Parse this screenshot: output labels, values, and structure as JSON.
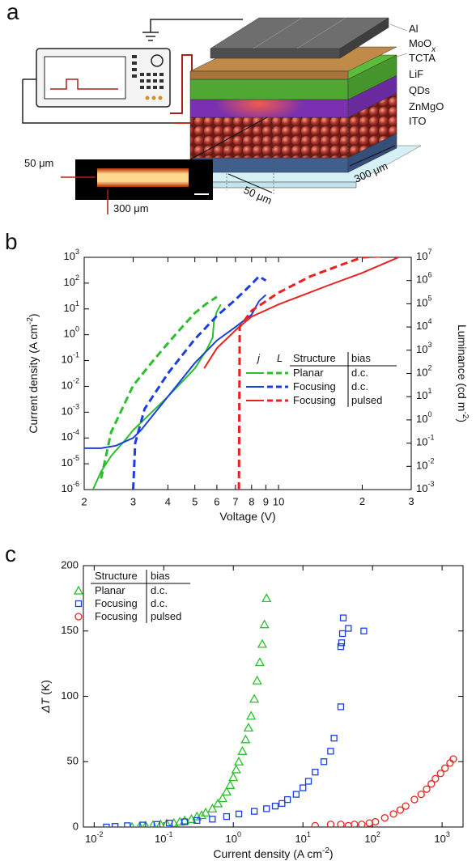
{
  "panel_labels": [
    "a",
    "b",
    "c"
  ],
  "schematic": {
    "layers": [
      {
        "text": "Al"
      },
      {
        "text": "MoO",
        "sub": "x"
      },
      {
        "text": "TCTA"
      },
      {
        "text": "LiF"
      },
      {
        "text": "QDs"
      },
      {
        "text": "ZnMgO"
      },
      {
        "text": "ITO"
      }
    ],
    "inset_labels": [
      "50 μm",
      "300 μm"
    ],
    "dimension_labels": [
      "50 μm",
      "300 μm"
    ]
  },
  "chart_data": [
    {
      "type": "line",
      "xlog": true,
      "ylog": true,
      "y2log": true,
      "xlabel": {
        "parts": [
          {
            "text": "Voltage (V)"
          }
        ]
      },
      "ylabel": {
        "parts": [
          {
            "text": "Current density (A cm"
          },
          {
            "text": "-2",
            "style": "sup"
          },
          {
            "text": ")"
          }
        ]
      },
      "y2label": {
        "parts": [
          {
            "text": "Luminance (cd m"
          },
          {
            "text": "-2",
            "style": "sup"
          },
          {
            "text": ")"
          }
        ]
      },
      "xlim": [
        2,
        30
      ],
      "xticks": [
        2,
        3,
        4,
        5,
        6,
        7,
        8,
        9,
        10,
        {
          "value": 20,
          "label": "2"
        },
        {
          "value": 30,
          "label": "3"
        }
      ],
      "ylim": [
        1e-06,
        1000
      ],
      "yticks": [
        {
          "value": 1e-06,
          "label": "10",
          "exponent": "-6"
        },
        {
          "value": 1e-05,
          "label": "10",
          "exponent": "-5"
        },
        {
          "value": 0.0001,
          "label": "10",
          "exponent": "-4"
        },
        {
          "value": 0.001,
          "label": "10",
          "exponent": "-3"
        },
        {
          "value": 0.01,
          "label": "10",
          "exponent": "-2"
        },
        {
          "value": 0.1,
          "label": "10",
          "exponent": "-1"
        },
        {
          "value": 1,
          "label": "10",
          "exponent": "0"
        },
        {
          "value": 10,
          "label": "10",
          "exponent": "1"
        },
        {
          "value": 100,
          "label": "10",
          "exponent": "2"
        },
        {
          "value": 1000,
          "label": "10",
          "exponent": "3"
        }
      ],
      "y2lim": [
        0.001,
        10000000
      ],
      "y2ticks": [
        {
          "value": 0.001,
          "label": "10",
          "exponent": "-3"
        },
        {
          "value": 0.01,
          "label": "10",
          "exponent": "-2"
        },
        {
          "value": 0.1,
          "label": "10",
          "exponent": "-1"
        },
        {
          "value": 1,
          "label": "10",
          "exponent": "0"
        },
        {
          "value": 10,
          "label": "10",
          "exponent": "1"
        },
        {
          "value": 100,
          "label": "10",
          "exponent": "2"
        },
        {
          "value": 1000,
          "label": "10",
          "exponent": "3"
        },
        {
          "value": 10000,
          "label": "10",
          "exponent": "4"
        },
        {
          "value": 100000,
          "label": "10",
          "exponent": "5"
        },
        {
          "value": 1000000,
          "label": "10",
          "exponent": "6"
        },
        {
          "value": 10000000,
          "label": "10",
          "exponent": "7"
        }
      ],
      "legend": {
        "headers": [
          "j",
          "L",
          "Structure",
          "bias"
        ]
      },
      "series": [
        {
          "name": "Planar",
          "bias": "d.c.",
          "color": "#2cbf2c",
          "style": "solid",
          "axis": "y",
          "x": [
            2.15,
            2.3,
            2.5,
            2.8,
            3,
            3.5,
            4,
            4.5,
            5,
            5.5,
            5.8,
            5.85,
            6,
            6.2
          ],
          "values": [
            1e-06,
            5e-06,
            2e-05,
            8e-05,
            0.0002,
            0.001,
            0.004,
            0.015,
            0.05,
            0.25,
            0.8,
            3,
            8,
            15
          ]
        },
        {
          "name": "Planar",
          "bias": "d.c.",
          "color": "#2cbf2c",
          "style": "dashed",
          "axis": "y2",
          "x": [
            2.3,
            2.5,
            3,
            3.5,
            4,
            4.5,
            5,
            5.5,
            6
          ],
          "values": [
            0.003,
            0.3,
            30,
            300,
            2000,
            10000,
            40000,
            100000,
            200000
          ]
        },
        {
          "name": "Focusing",
          "bias": "d.c.",
          "color": "#1a3fe0",
          "style": "solid",
          "axis": "y",
          "x": [
            2,
            2.3,
            2.6,
            3,
            3.2,
            4,
            5,
            6,
            7,
            8,
            8.5,
            9
          ],
          "values": [
            4e-05,
            4e-05,
            5e-05,
            0.0001,
            0.0002,
            0.004,
            0.08,
            0.6,
            2,
            6,
            20,
            35
          ]
        },
        {
          "name": "Focusing",
          "bias": "d.c.",
          "color": "#1a3fe0",
          "style": "dashed",
          "axis": "y2",
          "x": [
            3,
            3.05,
            3.3,
            4,
            5,
            6,
            7,
            8,
            8.5,
            9
          ],
          "values": [
            0.001,
            0.1,
            3,
            100,
            3000,
            30000,
            150000,
            700000,
            1500000,
            1000000
          ]
        },
        {
          "name": "Focusing",
          "bias": "pulsed",
          "color": "#e8231f",
          "style": "solid",
          "axis": "y",
          "x": [
            5.4,
            6,
            7.2,
            8,
            10,
            15,
            20,
            25,
            27
          ],
          "values": [
            0.05,
            0.3,
            2,
            5,
            15,
            80,
            250,
            700,
            1000
          ]
        },
        {
          "name": "Focusing",
          "bias": "pulsed",
          "color": "#e8231f",
          "style": "dashed",
          "axis": "y2",
          "x": [
            7.2,
            7.25,
            8,
            10,
            13,
            17,
            20,
            27
          ],
          "values": [
            0.001,
            10000,
            50000,
            300000,
            1500000,
            5000000,
            10000000,
            12000000
          ]
        }
      ]
    },
    {
      "type": "scatter",
      "xlog": true,
      "xlabel": {
        "parts": [
          {
            "text": "Current density (A cm"
          },
          {
            "text": "-2",
            "style": "sup"
          },
          {
            "text": ")"
          }
        ]
      },
      "ylabel": {
        "parts": [
          {
            "text": "ΔT",
            "style": "italic"
          },
          {
            "text": " (K)"
          }
        ]
      },
      "xlim": [
        0.007,
        2000
      ],
      "xticks": [
        {
          "value": 0.01,
          "label": "10",
          "exponent": "-2"
        },
        {
          "value": 0.1,
          "label": "10",
          "exponent": "-1"
        },
        {
          "value": 1,
          "label": "10",
          "exponent": "0"
        },
        {
          "value": 10,
          "label": "10",
          "exponent": "1"
        },
        {
          "value": 100,
          "label": "10",
          "exponent": "2"
        },
        {
          "value": 1000,
          "label": "10",
          "exponent": "3"
        }
      ],
      "ylim": [
        0,
        200
      ],
      "yticks": [
        0,
        50,
        100,
        150,
        200
      ],
      "legend": {
        "headers": [
          "Structure",
          "bias"
        ]
      },
      "series": [
        {
          "name": "Planar",
          "bias": "d.c.",
          "color": "#2cbf2c",
          "marker": "triangle",
          "x": [
            0.035,
            0.045,
            0.055,
            0.07,
            0.09,
            0.11,
            0.14,
            0.17,
            0.2,
            0.25,
            0.3,
            0.35,
            0.4,
            0.5,
            0.6,
            0.7,
            0.8,
            0.9,
            1.0,
            1.1,
            1.2,
            1.35,
            1.5,
            1.65,
            1.8,
            2.0,
            2.2,
            2.4,
            2.6,
            2.8,
            3.0
          ],
          "values": [
            0,
            0.5,
            1,
            1.5,
            2,
            2.5,
            3,
            4,
            5,
            6,
            8,
            9,
            11,
            14,
            18,
            22,
            27,
            32,
            38,
            44,
            50,
            58,
            67,
            76,
            85,
            98,
            112,
            126,
            140,
            155,
            175
          ]
        },
        {
          "name": "Focusing",
          "bias": "d.c.",
          "color": "#1a3fe0",
          "marker": "square",
          "x": [
            0.015,
            0.02,
            0.03,
            0.05,
            0.08,
            0.12,
            0.2,
            0.3,
            0.5,
            0.8,
            1.2,
            2,
            3,
            4,
            5,
            6,
            8,
            10,
            12,
            15,
            20,
            25,
            28,
            35,
            35,
            36,
            37,
            38,
            45,
            75
          ],
          "values": [
            0,
            0.5,
            1,
            1.5,
            2,
            3,
            4,
            5,
            6,
            8,
            10,
            12,
            14,
            16,
            18,
            21,
            25,
            30,
            35,
            42,
            50,
            58,
            68,
            92,
            138,
            141,
            148,
            160,
            152,
            150
          ]
        },
        {
          "name": "Focusing",
          "bias": "pulsed",
          "color": "#e8231f",
          "marker": "circle",
          "x": [
            15,
            25,
            35,
            45,
            55,
            70,
            90,
            110,
            150,
            200,
            250,
            300,
            400,
            500,
            600,
            700,
            800,
            950,
            1100,
            1300,
            1450
          ],
          "values": [
            1,
            2,
            2,
            1,
            2,
            2,
            3,
            4,
            7,
            10,
            13,
            16,
            21,
            25,
            29,
            33,
            37,
            41,
            45,
            49,
            52
          ]
        }
      ]
    }
  ]
}
